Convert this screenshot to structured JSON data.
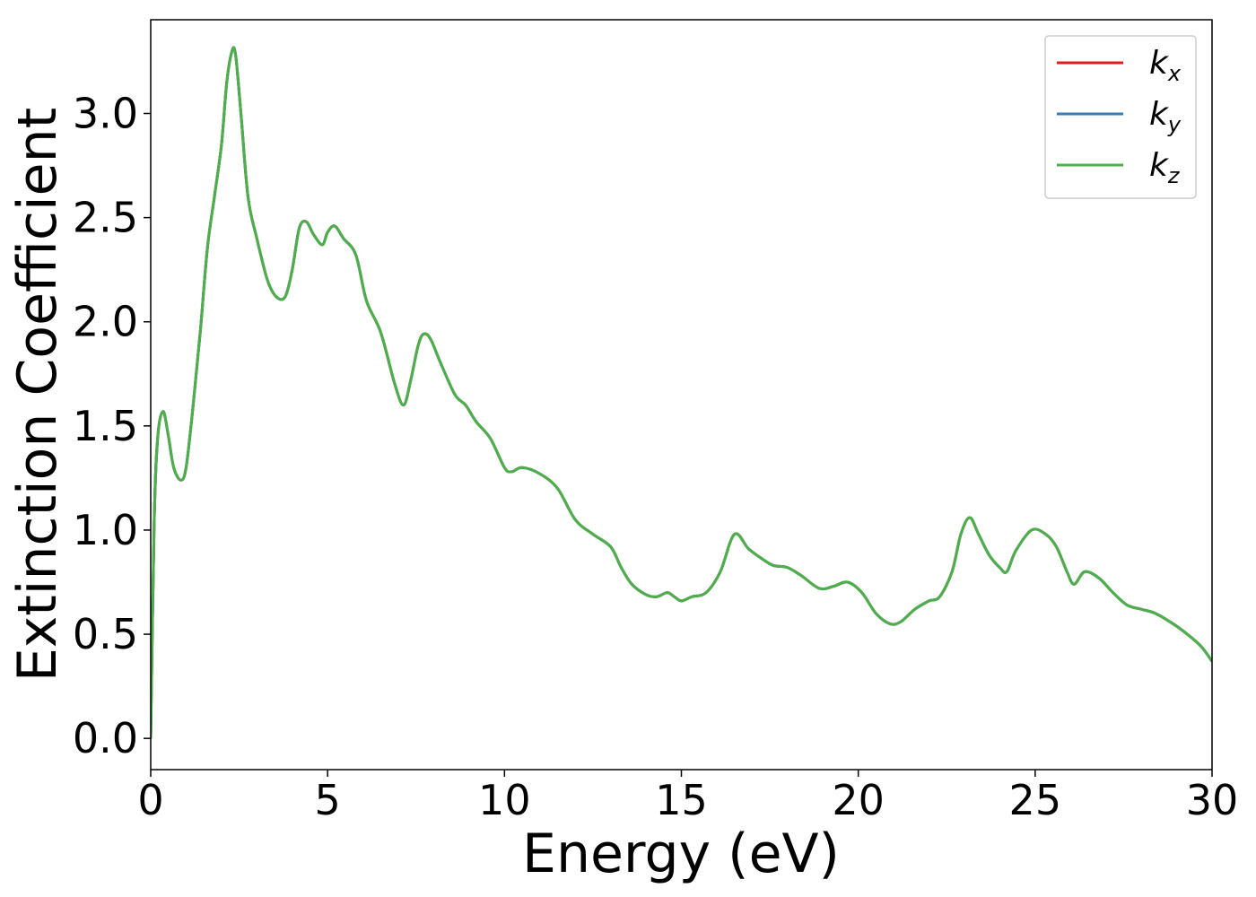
{
  "chart_data": {
    "type": "line",
    "title": "",
    "xlabel": "Energy (eV)",
    "ylabel": "Extinction Coefficient",
    "xlim": [
      0,
      30
    ],
    "ylim": [
      -0.15,
      3.45
    ],
    "xticks": [
      0,
      5,
      10,
      15,
      20,
      25,
      30
    ],
    "xtick_labels": [
      "0",
      "5",
      "10",
      "15",
      "20",
      "25",
      "30"
    ],
    "yticks": [
      0.0,
      0.5,
      1.0,
      1.5,
      2.0,
      2.5,
      3.0
    ],
    "ytick_labels": [
      "0.0",
      "0.5",
      "1.0",
      "1.5",
      "2.0",
      "2.5",
      "3.0"
    ],
    "grid": false,
    "legend_position": "top-right",
    "x": [
      0.0,
      0.1,
      0.2,
      0.35,
      0.5,
      0.65,
      0.85,
      1.0,
      1.2,
      1.4,
      1.6,
      1.8,
      2.0,
      2.15,
      2.3,
      2.4,
      2.55,
      2.75,
      3.0,
      3.3,
      3.55,
      3.8,
      4.0,
      4.2,
      4.4,
      4.6,
      4.85,
      5.0,
      5.2,
      5.45,
      5.8,
      6.1,
      6.5,
      6.9,
      7.15,
      7.35,
      7.55,
      7.7,
      7.9,
      8.2,
      8.6,
      8.9,
      9.2,
      9.6,
      10.0,
      10.2,
      10.5,
      11.0,
      11.5,
      12.0,
      12.5,
      13.0,
      13.3,
      13.6,
      14.0,
      14.3,
      14.6,
      14.8,
      15.0,
      15.3,
      15.7,
      16.1,
      16.5,
      16.9,
      17.3,
      17.6,
      18.0,
      18.4,
      18.9,
      19.3,
      19.7,
      20.1,
      20.5,
      20.9,
      21.2,
      21.6,
      22.0,
      22.3,
      22.65,
      22.9,
      23.15,
      23.4,
      23.7,
      24.0,
      24.2,
      24.45,
      24.9,
      25.3,
      25.6,
      25.9,
      26.1,
      26.4,
      26.8,
      27.2,
      27.6,
      28.0,
      28.4,
      28.9,
      29.3,
      29.7,
      30.0
    ],
    "series": [
      {
        "name": "k_x",
        "color": "#e41a1c",
        "values": [
          0.0,
          1.05,
          1.45,
          1.57,
          1.45,
          1.3,
          1.24,
          1.3,
          1.6,
          1.95,
          2.35,
          2.6,
          2.85,
          3.15,
          3.3,
          3.28,
          3.0,
          2.6,
          2.4,
          2.2,
          2.12,
          2.12,
          2.25,
          2.45,
          2.48,
          2.42,
          2.37,
          2.43,
          2.46,
          2.4,
          2.32,
          2.1,
          1.95,
          1.7,
          1.6,
          1.72,
          1.88,
          1.94,
          1.92,
          1.8,
          1.65,
          1.6,
          1.52,
          1.44,
          1.3,
          1.28,
          1.3,
          1.27,
          1.2,
          1.05,
          0.98,
          0.92,
          0.82,
          0.74,
          0.69,
          0.68,
          0.7,
          0.68,
          0.66,
          0.68,
          0.7,
          0.8,
          0.98,
          0.91,
          0.86,
          0.83,
          0.82,
          0.78,
          0.72,
          0.73,
          0.75,
          0.7,
          0.6,
          0.55,
          0.56,
          0.62,
          0.66,
          0.68,
          0.8,
          0.98,
          1.06,
          0.98,
          0.88,
          0.82,
          0.8,
          0.9,
          1.0,
          0.98,
          0.92,
          0.8,
          0.74,
          0.8,
          0.77,
          0.7,
          0.64,
          0.62,
          0.6,
          0.55,
          0.5,
          0.44,
          0.37
        ]
      },
      {
        "name": "k_y",
        "color": "#377eb8",
        "values": [
          0.0,
          1.05,
          1.45,
          1.57,
          1.45,
          1.3,
          1.24,
          1.3,
          1.6,
          1.95,
          2.35,
          2.6,
          2.85,
          3.15,
          3.3,
          3.28,
          3.0,
          2.6,
          2.4,
          2.2,
          2.12,
          2.12,
          2.25,
          2.45,
          2.48,
          2.42,
          2.37,
          2.43,
          2.46,
          2.4,
          2.32,
          2.1,
          1.95,
          1.7,
          1.6,
          1.72,
          1.88,
          1.94,
          1.92,
          1.8,
          1.65,
          1.6,
          1.52,
          1.44,
          1.3,
          1.28,
          1.3,
          1.27,
          1.2,
          1.05,
          0.98,
          0.92,
          0.82,
          0.74,
          0.69,
          0.68,
          0.7,
          0.68,
          0.66,
          0.68,
          0.7,
          0.8,
          0.98,
          0.91,
          0.86,
          0.83,
          0.82,
          0.78,
          0.72,
          0.73,
          0.75,
          0.7,
          0.6,
          0.55,
          0.56,
          0.62,
          0.66,
          0.68,
          0.8,
          0.98,
          1.06,
          0.98,
          0.88,
          0.82,
          0.8,
          0.9,
          1.0,
          0.98,
          0.92,
          0.8,
          0.74,
          0.8,
          0.77,
          0.7,
          0.64,
          0.62,
          0.6,
          0.55,
          0.5,
          0.44,
          0.37
        ]
      },
      {
        "name": "k_z",
        "color": "#4daf4a",
        "values": [
          0.0,
          1.05,
          1.45,
          1.57,
          1.45,
          1.3,
          1.24,
          1.3,
          1.6,
          1.95,
          2.35,
          2.6,
          2.85,
          3.15,
          3.3,
          3.28,
          3.0,
          2.6,
          2.4,
          2.2,
          2.12,
          2.12,
          2.25,
          2.45,
          2.48,
          2.42,
          2.37,
          2.43,
          2.46,
          2.4,
          2.32,
          2.1,
          1.95,
          1.7,
          1.6,
          1.72,
          1.88,
          1.94,
          1.92,
          1.8,
          1.65,
          1.6,
          1.52,
          1.44,
          1.3,
          1.28,
          1.3,
          1.27,
          1.2,
          1.05,
          0.98,
          0.92,
          0.82,
          0.74,
          0.69,
          0.68,
          0.7,
          0.68,
          0.66,
          0.68,
          0.7,
          0.8,
          0.98,
          0.91,
          0.86,
          0.83,
          0.82,
          0.78,
          0.72,
          0.73,
          0.75,
          0.7,
          0.6,
          0.55,
          0.56,
          0.62,
          0.66,
          0.68,
          0.8,
          0.98,
          1.06,
          0.98,
          0.88,
          0.82,
          0.8,
          0.9,
          1.0,
          0.98,
          0.92,
          0.8,
          0.74,
          0.8,
          0.77,
          0.7,
          0.64,
          0.62,
          0.6,
          0.55,
          0.5,
          0.44,
          0.37
        ]
      }
    ],
    "legend": [
      {
        "base": "k",
        "sub": "x",
        "color": "#e41a1c"
      },
      {
        "base": "k",
        "sub": "y",
        "color": "#377eb8"
      },
      {
        "base": "k",
        "sub": "z",
        "color": "#4daf4a"
      }
    ]
  }
}
